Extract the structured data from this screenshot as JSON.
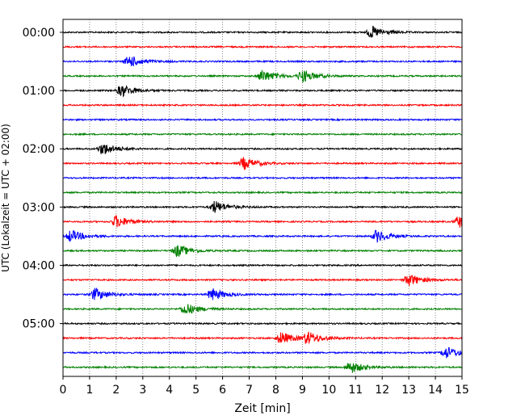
{
  "chart_data": {
    "type": "line",
    "title": "",
    "xlabel": "Zeit  [min]",
    "ylabel": "UTC (Lokalzeit = UTC + 02:00)",
    "xlim": [
      0,
      15
    ],
    "x_ticks": [
      "0",
      "1",
      "2",
      "3",
      "4",
      "5",
      "6",
      "7",
      "8",
      "9",
      "10",
      "11",
      "12",
      "13",
      "14",
      "15"
    ],
    "y_ticks": [
      "00:00",
      "01:00",
      "02:00",
      "03:00",
      "04:00",
      "05:00"
    ],
    "grid": "vertical dotted at each minute",
    "trace_interval_min": 15,
    "trace_colors": [
      "#000000",
      "#ff0000",
      "#0000ff",
      "#008000"
    ],
    "series": [
      {
        "start": "00:00",
        "color": "#000000",
        "events_min": [
          11.6
        ]
      },
      {
        "start": "00:15",
        "color": "#ff0000",
        "events_min": []
      },
      {
        "start": "00:30",
        "color": "#0000ff",
        "events_min": [
          2.5
        ]
      },
      {
        "start": "00:45",
        "color": "#008000",
        "events_min": [
          7.5,
          9.0
        ]
      },
      {
        "start": "01:00",
        "color": "#000000",
        "events_min": [
          2.2
        ]
      },
      {
        "start": "01:15",
        "color": "#ff0000",
        "events_min": []
      },
      {
        "start": "01:30",
        "color": "#0000ff",
        "events_min": []
      },
      {
        "start": "01:45",
        "color": "#008000",
        "events_min": []
      },
      {
        "start": "02:00",
        "color": "#000000",
        "events_min": [
          1.5
        ]
      },
      {
        "start": "02:15",
        "color": "#ff0000",
        "events_min": [
          6.8
        ]
      },
      {
        "start": "02:30",
        "color": "#0000ff",
        "events_min": []
      },
      {
        "start": "02:45",
        "color": "#008000",
        "events_min": []
      },
      {
        "start": "03:00",
        "color": "#000000",
        "events_min": [
          5.7
        ]
      },
      {
        "start": "03:15",
        "color": "#ff0000",
        "events_min": [
          2.0,
          14.9
        ]
      },
      {
        "start": "03:30",
        "color": "#0000ff",
        "events_min": [
          0.3,
          11.8
        ]
      },
      {
        "start": "03:45",
        "color": "#008000",
        "events_min": [
          4.3
        ]
      },
      {
        "start": "04:00",
        "color": "#000000",
        "events_min": []
      },
      {
        "start": "04:15",
        "color": "#ff0000",
        "events_min": [
          13.0
        ]
      },
      {
        "start": "04:30",
        "color": "#0000ff",
        "events_min": [
          1.2,
          5.6
        ]
      },
      {
        "start": "04:45",
        "color": "#008000",
        "events_min": [
          4.6
        ]
      },
      {
        "start": "05:00",
        "color": "#000000",
        "events_min": []
      },
      {
        "start": "05:15",
        "color": "#ff0000",
        "events_min": [
          8.2,
          9.2
        ]
      },
      {
        "start": "05:30",
        "color": "#0000ff",
        "events_min": [
          14.4
        ]
      },
      {
        "start": "05:45",
        "color": "#008000",
        "events_min": [
          10.8
        ]
      }
    ]
  }
}
